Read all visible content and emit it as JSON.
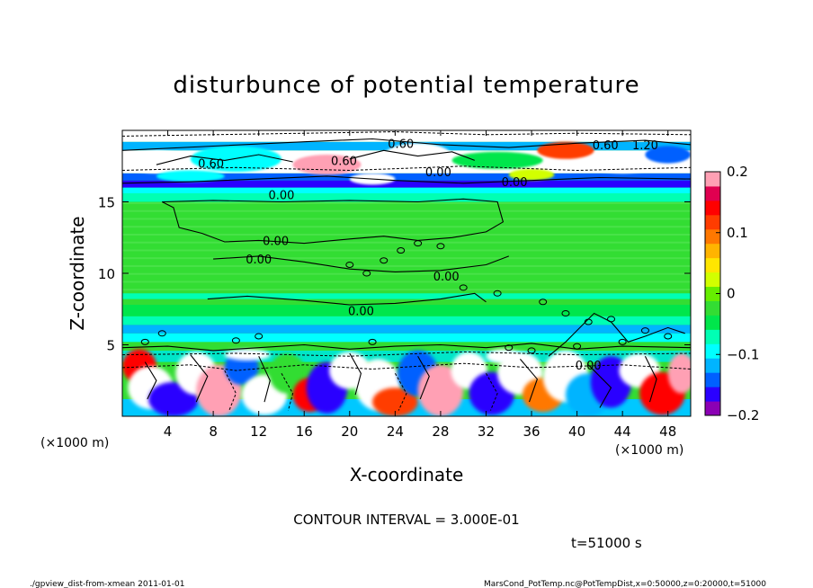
{
  "chart_data": {
    "type": "heatmap",
    "title": "disturbunce of potential temperature",
    "xlabel": "X-coordinate",
    "ylabel": "Z-coordinate",
    "x_unit_left": "(×1000 m)",
    "x_unit_right": "(×1000 m)",
    "x_range": [
      0,
      50
    ],
    "y_range": [
      0,
      20
    ],
    "x_ticks": [
      4,
      8,
      12,
      16,
      20,
      24,
      28,
      32,
      36,
      40,
      44,
      48
    ],
    "y_ticks": [
      5,
      10,
      15
    ],
    "colorbar": {
      "range": [
        -0.2,
        0.2
      ],
      "ticks": [
        {
          "value": 0.2,
          "label": "0.2"
        },
        {
          "value": 0.1,
          "label": "0.1"
        },
        {
          "value": 0,
          "label": "0"
        },
        {
          "value": -0.1,
          "label": "−0.1"
        },
        {
          "value": -0.2,
          "label": "−0.2"
        }
      ],
      "colors": [
        "#8b00b4",
        "#2a00ff",
        "#0060ff",
        "#00b4ff",
        "#00ffff",
        "#00ffb4",
        "#00e64b",
        "#33dd33",
        "#66ee00",
        "#d2ff00",
        "#ffe600",
        "#ffb400",
        "#ff7800",
        "#ff3c00",
        "#ff0000",
        "#e00050",
        "#ffa0b4"
      ]
    },
    "contour_labels": [
      {
        "x": 24.5,
        "z": 19.1,
        "text": "0.60"
      },
      {
        "x": 42.5,
        "z": 19.0,
        "text": "0.60"
      },
      {
        "x": 46.0,
        "z": 19.0,
        "text": "1.20"
      },
      {
        "x": 7.8,
        "z": 17.7,
        "text": "0.60"
      },
      {
        "x": 19.5,
        "z": 17.9,
        "text": "0.60"
      },
      {
        "x": 27.8,
        "z": 17.1,
        "text": "0.00"
      },
      {
        "x": 34.5,
        "z": 16.4,
        "text": "0.00"
      },
      {
        "x": 14.0,
        "z": 15.5,
        "text": "0.00"
      },
      {
        "x": 13.5,
        "z": 12.3,
        "text": "0.00"
      },
      {
        "x": 12.0,
        "z": 11.0,
        "text": "0.00"
      },
      {
        "x": 28.5,
        "z": 9.8,
        "text": "0.00"
      },
      {
        "x": 21.0,
        "z": 7.4,
        "text": "0.00"
      },
      {
        "x": 41.0,
        "z": 3.6,
        "text": "0.00"
      }
    ],
    "contour_interval": "CONTOUR INTERVAL = 3.000E-01",
    "time": "t=51000 s"
  },
  "footer": {
    "left": "./gpview_dist-from-xmean   2011-01-01",
    "right": "MarsCond_PotTemp.nc@PotTempDist,x=0:50000,z=0:20000,t=51000"
  }
}
